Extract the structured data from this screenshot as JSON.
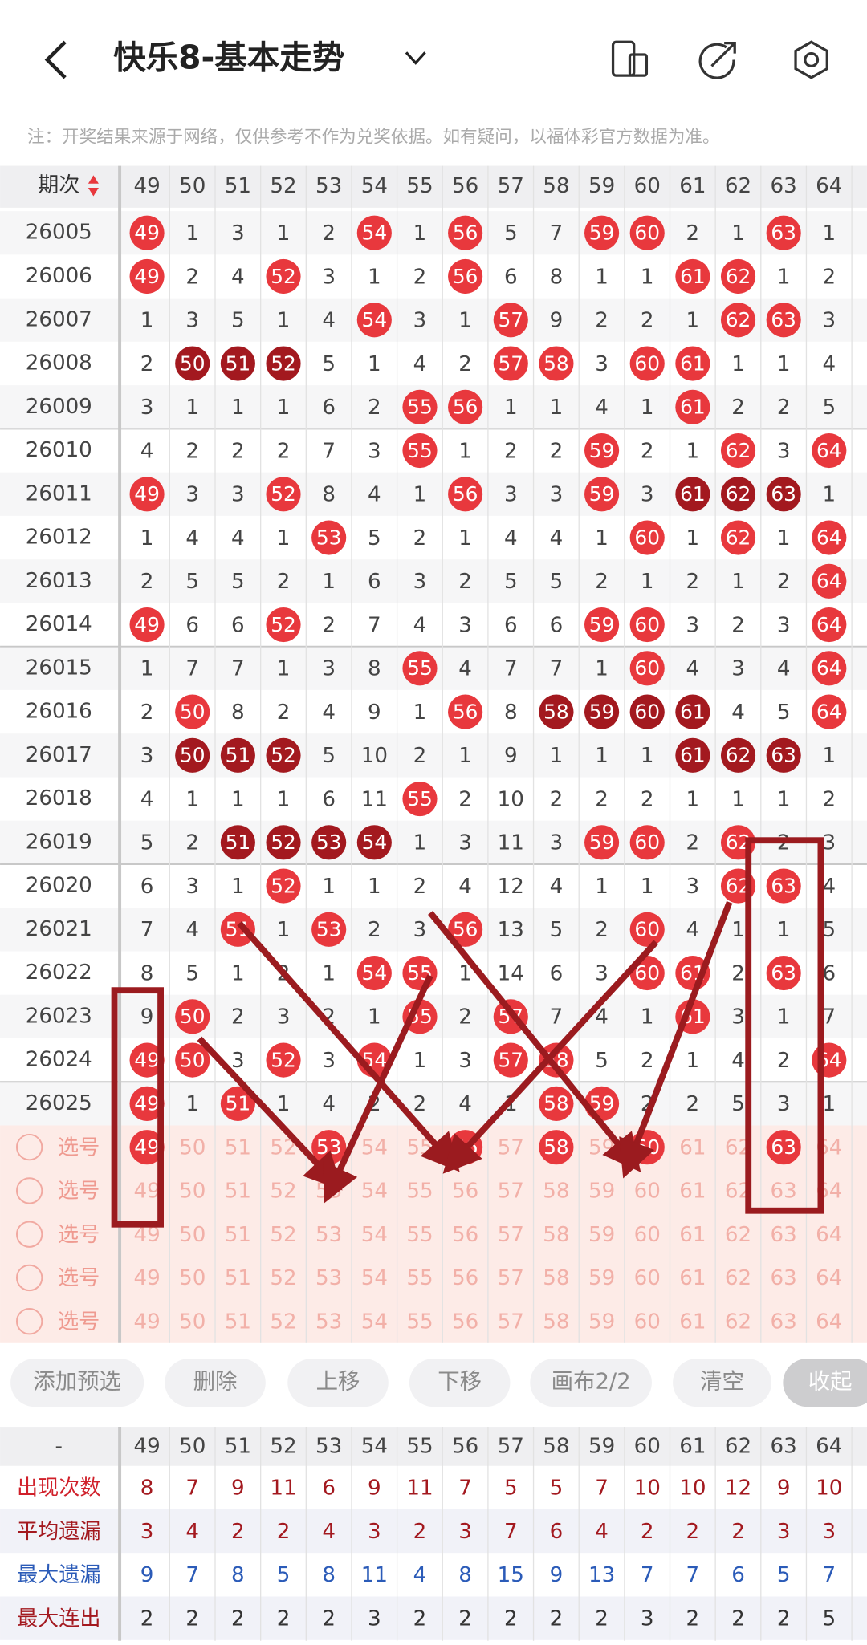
{
  "header": {
    "title": "快乐8-基本走势",
    "note": "注：开奖结果来源于网络，仅供参考不作为兑奖依据。如有疑问，以福体彩官方数据为准。"
  },
  "table": {
    "corner": "期次",
    "columns": [
      49,
      50,
      51,
      52,
      53,
      54,
      55,
      56,
      57,
      58,
      59,
      60,
      61,
      62,
      63,
      64
    ],
    "rows": [
      {
        "issue": "26005",
        "cells": [
          49,
          1,
          3,
          1,
          2,
          54,
          1,
          56,
          5,
          7,
          59,
          60,
          2,
          1,
          63,
          1
        ]
      },
      {
        "issue": "26006",
        "cells": [
          49,
          2,
          4,
          52,
          3,
          1,
          2,
          56,
          6,
          8,
          1,
          1,
          61,
          62,
          1,
          2
        ]
      },
      {
        "issue": "26007",
        "cells": [
          1,
          3,
          5,
          1,
          4,
          54,
          3,
          1,
          57,
          9,
          2,
          2,
          1,
          62,
          63,
          3
        ]
      },
      {
        "issue": "26008",
        "cells": [
          2,
          50,
          51,
          52,
          5,
          1,
          4,
          2,
          57,
          58,
          3,
          60,
          61,
          1,
          1,
          4
        ]
      },
      {
        "issue": "26009",
        "cells": [
          3,
          1,
          1,
          1,
          6,
          2,
          55,
          56,
          1,
          1,
          4,
          1,
          61,
          2,
          2,
          5
        ]
      },
      {
        "issue": "26010",
        "cells": [
          4,
          2,
          2,
          2,
          7,
          3,
          55,
          1,
          2,
          2,
          59,
          2,
          1,
          62,
          3,
          64
        ]
      },
      {
        "issue": "26011",
        "cells": [
          49,
          3,
          3,
          52,
          8,
          4,
          1,
          56,
          3,
          3,
          59,
          3,
          61,
          62,
          63,
          1
        ]
      },
      {
        "issue": "26012",
        "cells": [
          1,
          4,
          4,
          1,
          53,
          5,
          2,
          1,
          4,
          4,
          1,
          60,
          1,
          62,
          1,
          64
        ]
      },
      {
        "issue": "26013",
        "cells": [
          2,
          5,
          5,
          2,
          1,
          6,
          3,
          2,
          5,
          5,
          2,
          1,
          2,
          1,
          2,
          64
        ]
      },
      {
        "issue": "26014",
        "cells": [
          49,
          6,
          6,
          52,
          2,
          7,
          4,
          3,
          6,
          6,
          59,
          60,
          3,
          2,
          3,
          64
        ]
      },
      {
        "issue": "26015",
        "cells": [
          1,
          7,
          7,
          1,
          3,
          8,
          55,
          4,
          7,
          7,
          1,
          60,
          4,
          3,
          4,
          64
        ]
      },
      {
        "issue": "26016",
        "cells": [
          2,
          50,
          8,
          2,
          4,
          9,
          1,
          56,
          8,
          58,
          59,
          60,
          61,
          4,
          5,
          64
        ]
      },
      {
        "issue": "26017",
        "cells": [
          3,
          50,
          51,
          52,
          5,
          10,
          2,
          1,
          9,
          1,
          1,
          1,
          61,
          62,
          63,
          1
        ]
      },
      {
        "issue": "26018",
        "cells": [
          4,
          1,
          1,
          1,
          6,
          11,
          55,
          2,
          10,
          2,
          2,
          2,
          1,
          1,
          1,
          2
        ]
      },
      {
        "issue": "26019",
        "cells": [
          5,
          2,
          51,
          52,
          53,
          54,
          1,
          3,
          11,
          3,
          59,
          60,
          2,
          62,
          2,
          3
        ]
      },
      {
        "issue": "26020",
        "cells": [
          6,
          3,
          1,
          52,
          1,
          1,
          2,
          4,
          12,
          4,
          1,
          1,
          3,
          62,
          63,
          4
        ]
      },
      {
        "issue": "26021",
        "cells": [
          7,
          4,
          51,
          1,
          53,
          2,
          3,
          56,
          13,
          5,
          2,
          60,
          4,
          1,
          1,
          5
        ]
      },
      {
        "issue": "26022",
        "cells": [
          8,
          5,
          1,
          2,
          1,
          54,
          55,
          1,
          14,
          6,
          3,
          60,
          61,
          2,
          63,
          6
        ]
      },
      {
        "issue": "26023",
        "cells": [
          9,
          50,
          2,
          3,
          2,
          1,
          55,
          2,
          57,
          7,
          4,
          1,
          61,
          3,
          1,
          7
        ]
      },
      {
        "issue": "26024",
        "cells": [
          49,
          50,
          3,
          52,
          3,
          54,
          1,
          3,
          57,
          58,
          5,
          2,
          1,
          4,
          2,
          64
        ]
      },
      {
        "issue": "26025",
        "cells": [
          49,
          1,
          51,
          1,
          4,
          2,
          2,
          4,
          1,
          58,
          59,
          2,
          2,
          5,
          3,
          1
        ]
      }
    ],
    "select_rows": [
      {
        "label": "选号",
        "selected": [
          49,
          53,
          56,
          58,
          60,
          63
        ]
      },
      {
        "label": "选号"
      },
      {
        "label": "选号"
      },
      {
        "label": "选号"
      },
      {
        "label": "选号"
      }
    ]
  },
  "buttons": [
    "添加预选",
    "删除",
    "上移",
    "下移",
    "画布2/2",
    "清空",
    "收起"
  ],
  "stats": {
    "corner": "-",
    "rows": [
      {
        "label": "出现次数",
        "values": [
          8,
          7,
          9,
          11,
          6,
          9,
          11,
          7,
          5,
          5,
          7,
          10,
          10,
          12,
          9,
          10
        ]
      },
      {
        "label": "平均遗漏",
        "values": [
          3,
          4,
          2,
          2,
          4,
          3,
          2,
          3,
          7,
          6,
          4,
          2,
          2,
          2,
          3,
          3
        ]
      },
      {
        "label": "最大遗漏",
        "values": [
          9,
          7,
          8,
          5,
          8,
          11,
          4,
          8,
          15,
          9,
          13,
          7,
          7,
          6,
          5,
          7
        ]
      },
      {
        "label": "最大连出",
        "values": [
          2,
          2,
          2,
          2,
          2,
          3,
          2,
          2,
          2,
          2,
          2,
          3,
          2,
          2,
          2,
          5
        ]
      }
    ]
  }
}
